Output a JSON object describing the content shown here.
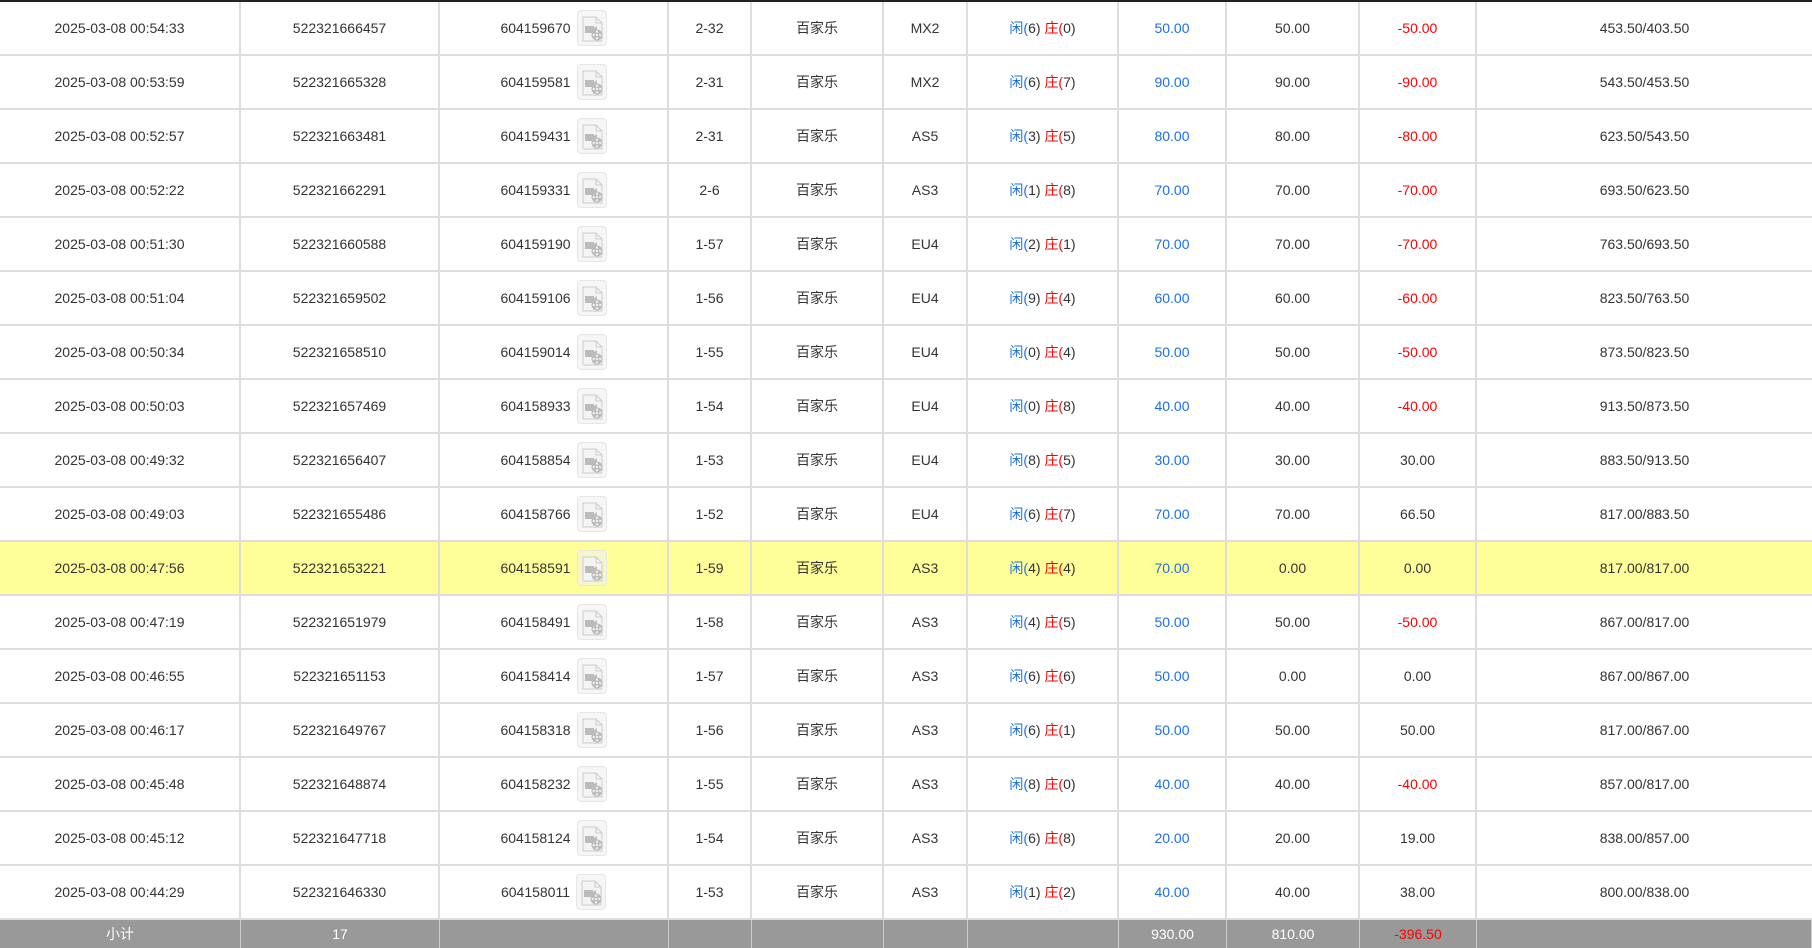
{
  "colors": {
    "bet_blue": "#1a6fe8",
    "loss_red": "#ff0000",
    "highlight": "#ffff99",
    "footer_bg": "#999999"
  },
  "row_icon": "video-file-icon",
  "highlighted_row": 10,
  "rows": [
    [
      "2025-03-08 00:54:33",
      "522321666457",
      "604159670",
      "2-32",
      "百家乐",
      "MX2",
      "闲(6)",
      "庄(0)",
      "50.00",
      "50.00",
      "-50.00",
      "453.50/403.50"
    ],
    [
      "2025-03-08 00:53:59",
      "522321665328",
      "604159581",
      "2-31",
      "百家乐",
      "MX2",
      "闲(6)",
      "庄(7)",
      "90.00",
      "90.00",
      "-90.00",
      "543.50/453.50"
    ],
    [
      "2025-03-08 00:52:57",
      "522321663481",
      "604159431",
      "2-31",
      "百家乐",
      "AS5",
      "闲(3)",
      "庄(5)",
      "80.00",
      "80.00",
      "-80.00",
      "623.50/543.50"
    ],
    [
      "2025-03-08 00:52:22",
      "522321662291",
      "604159331",
      "2-6",
      "百家乐",
      "AS3",
      "闲(1)",
      "庄(8)",
      "70.00",
      "70.00",
      "-70.00",
      "693.50/623.50"
    ],
    [
      "2025-03-08 00:51:30",
      "522321660588",
      "604159190",
      "1-57",
      "百家乐",
      "EU4",
      "闲(2)",
      "庄(1)",
      "70.00",
      "70.00",
      "-70.00",
      "763.50/693.50"
    ],
    [
      "2025-03-08 00:51:04",
      "522321659502",
      "604159106",
      "1-56",
      "百家乐",
      "EU4",
      "闲(9)",
      "庄(4)",
      "60.00",
      "60.00",
      "-60.00",
      "823.50/763.50"
    ],
    [
      "2025-03-08 00:50:34",
      "522321658510",
      "604159014",
      "1-55",
      "百家乐",
      "EU4",
      "闲(0)",
      "庄(4)",
      "50.00",
      "50.00",
      "-50.00",
      "873.50/823.50"
    ],
    [
      "2025-03-08 00:50:03",
      "522321657469",
      "604158933",
      "1-54",
      "百家乐",
      "EU4",
      "闲(0)",
      "庄(8)",
      "40.00",
      "40.00",
      "-40.00",
      "913.50/873.50"
    ],
    [
      "2025-03-08 00:49:32",
      "522321656407",
      "604158854",
      "1-53",
      "百家乐",
      "EU4",
      "闲(8)",
      "庄(5)",
      "30.00",
      "30.00",
      "30.00",
      "883.50/913.50"
    ],
    [
      "2025-03-08 00:49:03",
      "522321655486",
      "604158766",
      "1-52",
      "百家乐",
      "EU4",
      "闲(6)",
      "庄(7)",
      "70.00",
      "70.00",
      "66.50",
      "817.00/883.50"
    ],
    [
      "2025-03-08 00:47:56",
      "522321653221",
      "604158591",
      "1-59",
      "百家乐",
      "AS3",
      "闲(4)",
      "庄(4)",
      "70.00",
      "0.00",
      "0.00",
      "817.00/817.00"
    ],
    [
      "2025-03-08 00:47:19",
      "522321651979",
      "604158491",
      "1-58",
      "百家乐",
      "AS3",
      "闲(4)",
      "庄(5)",
      "50.00",
      "50.00",
      "-50.00",
      "867.00/817.00"
    ],
    [
      "2025-03-08 00:46:55",
      "522321651153",
      "604158414",
      "1-57",
      "百家乐",
      "AS3",
      "闲(6)",
      "庄(6)",
      "50.00",
      "0.00",
      "0.00",
      "867.00/867.00"
    ],
    [
      "2025-03-08 00:46:17",
      "522321649767",
      "604158318",
      "1-56",
      "百家乐",
      "AS3",
      "闲(6)",
      "庄(1)",
      "50.00",
      "50.00",
      "50.00",
      "817.00/867.00"
    ],
    [
      "2025-03-08 00:45:48",
      "522321648874",
      "604158232",
      "1-55",
      "百家乐",
      "AS3",
      "闲(8)",
      "庄(0)",
      "40.00",
      "40.00",
      "-40.00",
      "857.00/817.00"
    ],
    [
      "2025-03-08 00:45:12",
      "522321647718",
      "604158124",
      "1-54",
      "百家乐",
      "AS3",
      "闲(6)",
      "庄(8)",
      "20.00",
      "20.00",
      "19.00",
      "838.00/857.00"
    ],
    [
      "2025-03-08 00:44:29",
      "522321646330",
      "604158011",
      "1-53",
      "百家乐",
      "AS3",
      "闲(1)",
      "庄(2)",
      "40.00",
      "40.00",
      "38.00",
      "800.00/838.00"
    ]
  ],
  "footer": {
    "label": "小计",
    "count": "17",
    "bet_total": "930.00",
    "valid_total": "810.00",
    "winloss_total": "-396.50"
  }
}
